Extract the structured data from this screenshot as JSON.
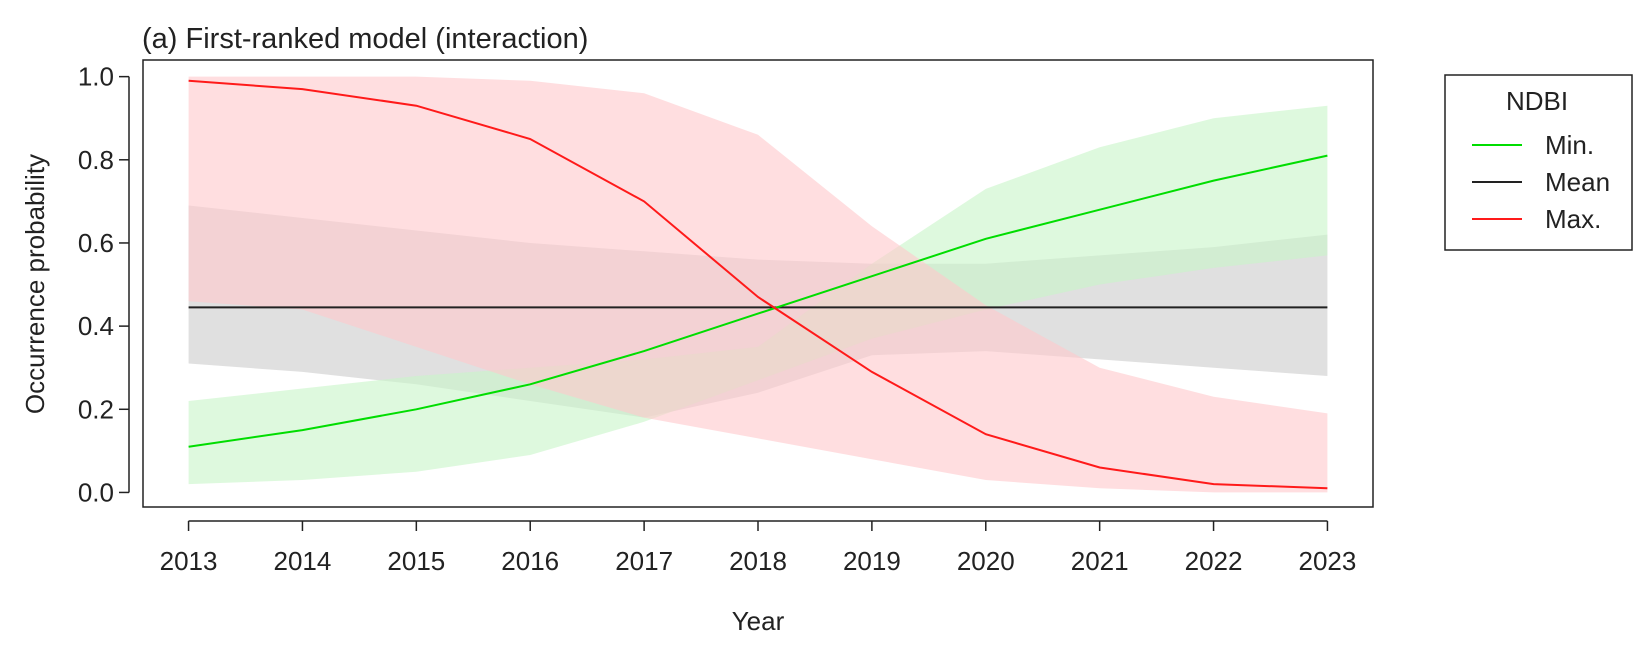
{
  "chart_data": {
    "type": "line",
    "title": "(a) First-ranked model (interaction)",
    "xlabel": "Year",
    "ylabel": "Occurrence probability",
    "x": [
      2013,
      2014,
      2015,
      2016,
      2017,
      2018,
      2019,
      2020,
      2021,
      2022,
      2023
    ],
    "xlim": [
      2012.6,
      2023.4
    ],
    "ylim": [
      -0.035,
      1.04
    ],
    "xticks": [
      "2013",
      "2014",
      "2015",
      "2016",
      "2017",
      "2018",
      "2019",
      "2020",
      "2021",
      "2022",
      "2023"
    ],
    "yticks": [
      "0.0",
      "0.2",
      "0.4",
      "0.6",
      "0.8",
      "1.0"
    ],
    "ytick_values": [
      0.0,
      0.2,
      0.4,
      0.6,
      0.8,
      1.0
    ],
    "legend": {
      "title": "NDBI",
      "position": "top-right, outside plot"
    },
    "series": [
      {
        "name": "Min.",
        "color": "#00dd00",
        "band_color": "#c8f5c8",
        "values": [
          0.11,
          0.15,
          0.2,
          0.26,
          0.34,
          0.43,
          0.52,
          0.61,
          0.68,
          0.75,
          0.81
        ],
        "lower": [
          0.02,
          0.03,
          0.05,
          0.09,
          0.17,
          0.27,
          0.37,
          0.44,
          0.5,
          0.54,
          0.57
        ],
        "upper": [
          0.22,
          0.25,
          0.28,
          0.3,
          0.32,
          0.35,
          0.55,
          0.73,
          0.83,
          0.9,
          0.93
        ]
      },
      {
        "name": "Mean",
        "color": "#222222",
        "band_color": "#cccccc",
        "values": [
          0.445,
          0.445,
          0.445,
          0.445,
          0.445,
          0.445,
          0.445,
          0.445,
          0.445,
          0.445,
          0.445
        ],
        "lower": [
          0.31,
          0.29,
          0.26,
          0.22,
          0.18,
          0.24,
          0.33,
          0.34,
          0.32,
          0.3,
          0.28
        ],
        "upper": [
          0.69,
          0.66,
          0.63,
          0.6,
          0.58,
          0.56,
          0.55,
          0.55,
          0.57,
          0.59,
          0.62
        ]
      },
      {
        "name": "Max.",
        "color": "#ff1a1a",
        "band_color": "#ffc8cc",
        "values": [
          0.99,
          0.97,
          0.93,
          0.85,
          0.7,
          0.47,
          0.29,
          0.14,
          0.06,
          0.02,
          0.01
        ],
        "lower": [
          0.46,
          0.44,
          0.35,
          0.26,
          0.18,
          0.13,
          0.08,
          0.03,
          0.01,
          0.0,
          0.0
        ],
        "upper": [
          1.0,
          1.0,
          1.0,
          0.99,
          0.96,
          0.86,
          0.64,
          0.45,
          0.3,
          0.23,
          0.19
        ]
      }
    ]
  }
}
